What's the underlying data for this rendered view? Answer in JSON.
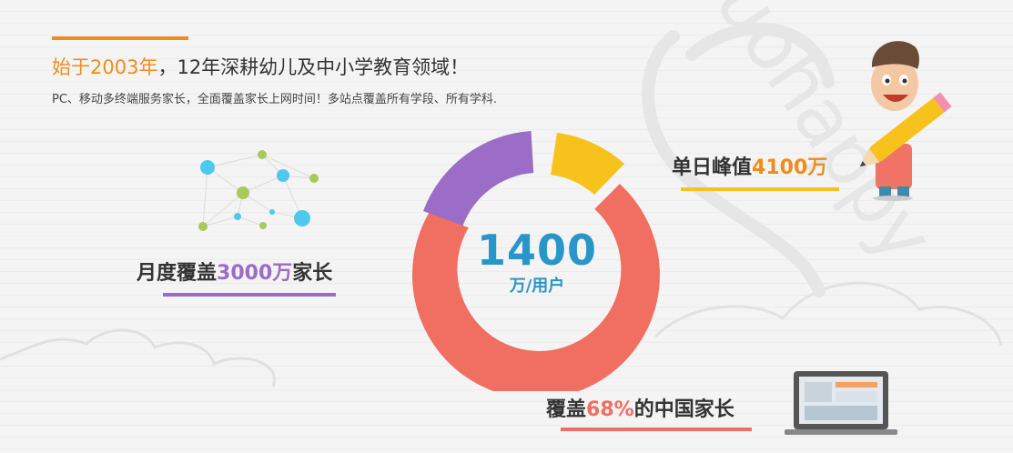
{
  "header": {
    "headline_highlight": "始于2003年",
    "headline_rest": "，12年深耕幼儿及中小学教育领域！",
    "subline": "PC、移动多终端服务家长，全面覆盖家长上网时间！多站点覆盖所有学段、所有学科."
  },
  "watermark": "duohappy",
  "stats": {
    "monthly": {
      "prefix": "月度覆盖",
      "number": "3000万",
      "suffix": "家长"
    },
    "peak": {
      "prefix": "单日峰值",
      "number": "4100万",
      "suffix": ""
    },
    "coverage": {
      "prefix": "覆盖",
      "number": "68%",
      "suffix": "的中国家长"
    }
  },
  "center": {
    "number": "1400",
    "unit": "万/用户"
  },
  "colors": {
    "orange": "#f08c1c",
    "purple": "#9b6dc6",
    "yellow": "#f7c21b",
    "red": "#f06f61",
    "blue": "#2996c9"
  }
}
